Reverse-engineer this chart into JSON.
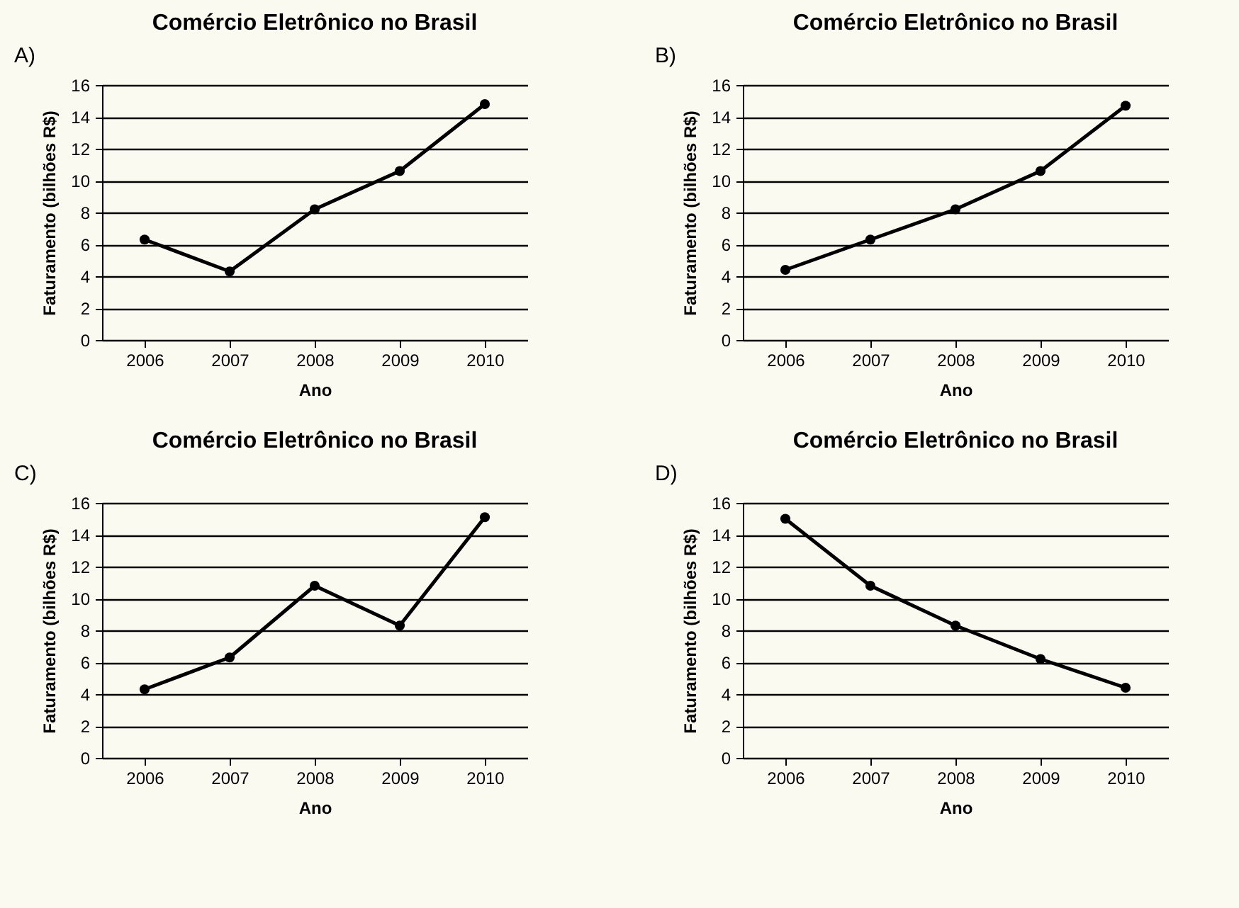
{
  "chart_data": [
    {
      "type": "line",
      "title": "Comércio Eletrônico no Brasil",
      "xlabel": "Ano",
      "ylabel": "Faturamento (bilhões R$)",
      "annotations": [
        "A)"
      ],
      "categories": [
        "2006",
        "2007",
        "2008",
        "2009",
        "2010"
      ],
      "series": [
        {
          "color": "#000000",
          "values": [
            6.3,
            4.3,
            8.2,
            10.6,
            14.8
          ]
        }
      ],
      "ylim": [
        0,
        16
      ],
      "yticks": [
        0,
        2,
        4,
        6,
        8,
        10,
        12,
        14,
        16
      ],
      "grid": "y",
      "marker": "circle",
      "line_style": "solid"
    },
    {
      "type": "line",
      "title": "Comércio Eletrônico no Brasil",
      "xlabel": "Ano",
      "ylabel": "Faturamento (bilhões R$)",
      "annotations": [
        "B)"
      ],
      "categories": [
        "2006",
        "2007",
        "2008",
        "2009",
        "2010"
      ],
      "series": [
        {
          "color": "#000000",
          "values": [
            4.4,
            6.3,
            8.2,
            10.6,
            14.7
          ]
        }
      ],
      "ylim": [
        0,
        16
      ],
      "yticks": [
        0,
        2,
        4,
        6,
        8,
        10,
        12,
        14,
        16
      ],
      "grid": "y",
      "marker": "circle",
      "line_style": "solid"
    },
    {
      "type": "line",
      "title": "Comércio Eletrônico no Brasil",
      "xlabel": "Ano",
      "ylabel": "Faturamento (bilhões R$)",
      "annotations": [
        "C)"
      ],
      "categories": [
        "2006",
        "2007",
        "2008",
        "2009",
        "2010"
      ],
      "series": [
        {
          "color": "#000000",
          "values": [
            4.3,
            6.3,
            10.8,
            8.3,
            15.1
          ]
        }
      ],
      "ylim": [
        0,
        16
      ],
      "yticks": [
        0,
        2,
        4,
        6,
        8,
        10,
        12,
        14,
        16
      ],
      "grid": "y",
      "marker": "circle",
      "line_style": "solid"
    },
    {
      "type": "line",
      "title": "Comércio Eletrônico no Brasil",
      "xlabel": "Ano",
      "ylabel": "Faturamento (bilhões R$)",
      "annotations": [
        "D)"
      ],
      "categories": [
        "2006",
        "2007",
        "2008",
        "2009",
        "2010"
      ],
      "series": [
        {
          "color": "#000000",
          "values": [
            15.0,
            10.8,
            8.3,
            6.2,
            4.4
          ]
        }
      ],
      "ylim": [
        0,
        16
      ],
      "yticks": [
        0,
        2,
        4,
        6,
        8,
        10,
        12,
        14,
        16
      ],
      "grid": "y",
      "marker": "circle",
      "line_style": "solid"
    }
  ]
}
